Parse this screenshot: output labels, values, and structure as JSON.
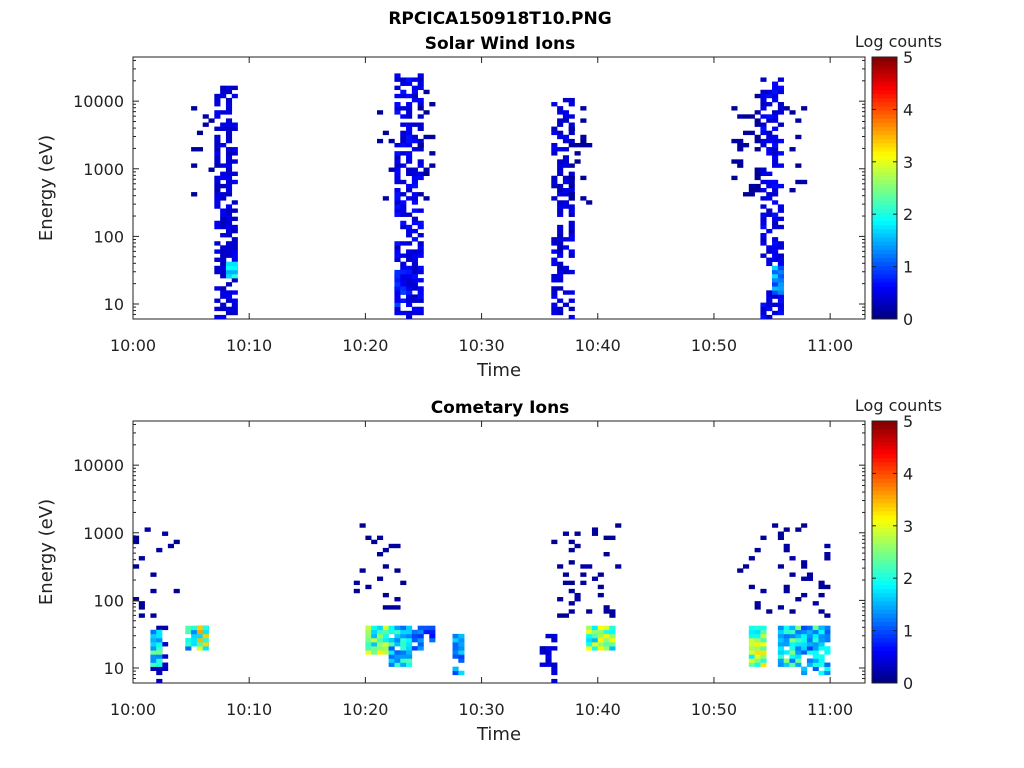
{
  "figure_title": "RPCICA150918T10.PNG",
  "colors": {
    "jet": [
      "#00007f",
      "#0000ff",
      "#007fff",
      "#00ffff",
      "#7fff7f",
      "#ffff00",
      "#ff7f00",
      "#ff0000",
      "#7f0000"
    ]
  },
  "chart_data": [
    {
      "type": "heatmap",
      "title": "Solar Wind Ions",
      "xlabel": "Time",
      "ylabel": "Energy (eV)",
      "y_scale": "log",
      "ylim": [
        6,
        45000
      ],
      "xlim": [
        "10:00",
        "11:03"
      ],
      "x_ticks": [
        "10:00",
        "10:10",
        "10:20",
        "10:30",
        "10:40",
        "10:50",
        "11:00"
      ],
      "y_ticks": [
        "10",
        "100",
        "1000",
        "10000"
      ],
      "colorbar": {
        "label": "Log counts",
        "range": [
          0,
          5
        ],
        "ticks": [
          "0",
          "1",
          "2",
          "3",
          "4",
          "5"
        ]
      },
      "clusters": [
        {
          "t_start": 10.0,
          "t_end": 11.5,
          "e_low": 300,
          "e_high": 10000,
          "density": 0.16,
          "max_level": 0.2
        },
        {
          "t_start": 12.0,
          "t_end": 14.5,
          "e_low": 300,
          "e_high": 15000,
          "density": 0.05,
          "max_level": 0.2
        },
        {
          "t_start": 14.5,
          "t_end": 17.2,
          "e_low": 6,
          "e_high": 15000,
          "density": 0.6,
          "max_level": 0.6
        },
        {
          "t_start": 16.5,
          "t_end": 17.2,
          "e_low": 25,
          "e_high": 40,
          "density": 1.0,
          "max_level": 2.3
        },
        {
          "t_start": 42.0,
          "t_end": 45.0,
          "e_low": 300,
          "e_high": 10000,
          "density": 0.15,
          "max_level": 0.2
        },
        {
          "t_start": 45.0,
          "t_end": 49.5,
          "e_low": 6,
          "e_high": 25000,
          "density": 0.55,
          "max_level": 0.7
        },
        {
          "t_start": 45.5,
          "t_end": 48.0,
          "e_low": 10,
          "e_high": 30,
          "density": 0.8,
          "max_level": 1.0
        },
        {
          "t_start": 49.5,
          "t_end": 52.0,
          "e_low": 300,
          "e_high": 15000,
          "density": 0.12,
          "max_level": 0.2
        },
        {
          "t_start": 72.0,
          "t_end": 75.5,
          "e_low": 6,
          "e_high": 10000,
          "density": 0.55,
          "max_level": 0.6
        },
        {
          "t_start": 75.5,
          "t_end": 79.0,
          "e_low": 300,
          "e_high": 10000,
          "density": 0.18,
          "max_level": 0.2
        },
        {
          "t_start": 103.0,
          "t_end": 108.0,
          "e_low": 400,
          "e_high": 12000,
          "density": 0.15,
          "max_level": 0.2
        },
        {
          "t_start": 108.5,
          "t_end": 112.0,
          "e_low": 6,
          "e_high": 20000,
          "density": 0.55,
          "max_level": 0.7
        },
        {
          "t_start": 110.0,
          "t_end": 111.8,
          "e_low": 15,
          "e_high": 35,
          "density": 1.0,
          "max_level": 1.9
        },
        {
          "t_start": 112.0,
          "t_end": 116.0,
          "e_low": 500,
          "e_high": 10000,
          "density": 0.14,
          "max_level": 0.2
        }
      ]
    },
    {
      "type": "heatmap",
      "title": "Cometary Ions",
      "xlabel": "Time",
      "ylabel": "Energy (eV)",
      "y_scale": "log",
      "ylim": [
        6,
        45000
      ],
      "xlim": [
        "10:00",
        "11:03"
      ],
      "x_ticks": [
        "10:00",
        "10:10",
        "10:20",
        "10:30",
        "10:40",
        "10:50",
        "11:00"
      ],
      "y_ticks": [
        "10",
        "100",
        "1000",
        "10000"
      ],
      "colorbar": {
        "label": "Log counts",
        "range": [
          0,
          5
        ],
        "ticks": [
          "0",
          "1",
          "2",
          "3",
          "4",
          "5"
        ]
      },
      "clusters": [
        {
          "t_start": 0.5,
          "t_end": 8.0,
          "e_low": 60,
          "e_high": 1200,
          "density": 0.12,
          "max_level": 0.2
        },
        {
          "t_start": 3.0,
          "t_end": 5.5,
          "e_low": 6,
          "e_high": 40,
          "density": 0.4,
          "max_level": 0.4
        },
        {
          "t_start": 3.8,
          "t_end": 4.8,
          "e_low": 12,
          "e_high": 35,
          "density": 1.0,
          "max_level": 2.6
        },
        {
          "t_start": 9.5,
          "t_end": 12.5,
          "e_low": 20,
          "e_high": 40,
          "density": 0.8,
          "max_level": 2.3
        },
        {
          "t_start": 11.0,
          "t_end": 13.0,
          "e_low": 20,
          "e_high": 40,
          "density": 1.0,
          "max_level": 3.6
        },
        {
          "t_start": 38.0,
          "t_end": 47.0,
          "e_low": 60,
          "e_high": 1200,
          "density": 0.12,
          "max_level": 0.2
        },
        {
          "t_start": 40.0,
          "t_end": 44.0,
          "e_low": 18,
          "e_high": 40,
          "density": 1.0,
          "max_level": 3.2
        },
        {
          "t_start": 44.0,
          "t_end": 48.0,
          "e_low": 12,
          "e_high": 40,
          "density": 0.9,
          "max_level": 2.3
        },
        {
          "t_start": 48.5,
          "t_end": 51.5,
          "e_low": 20,
          "e_high": 40,
          "density": 0.6,
          "max_level": 1.5
        },
        {
          "t_start": 55.5,
          "t_end": 56.5,
          "e_low": 8,
          "e_high": 30,
          "density": 0.7,
          "max_level": 1.9
        },
        {
          "t_start": 70.0,
          "t_end": 73.0,
          "e_low": 6,
          "e_high": 30,
          "density": 0.45,
          "max_level": 0.5
        },
        {
          "t_start": 72.0,
          "t_end": 84.0,
          "e_low": 60,
          "e_high": 1200,
          "density": 0.12,
          "max_level": 0.2
        },
        {
          "t_start": 78.5,
          "t_end": 83.0,
          "e_low": 20,
          "e_high": 40,
          "density": 1.0,
          "max_level": 3.4
        },
        {
          "t_start": 104.0,
          "t_end": 120.0,
          "e_low": 60,
          "e_high": 1200,
          "density": 0.12,
          "max_level": 0.2
        },
        {
          "t_start": 106.0,
          "t_end": 108.5,
          "e_low": 12,
          "e_high": 40,
          "density": 1.0,
          "max_level": 3.3
        },
        {
          "t_start": 111.0,
          "t_end": 114.5,
          "e_low": 12,
          "e_high": 40,
          "density": 0.9,
          "max_level": 2.6
        },
        {
          "t_start": 115.5,
          "t_end": 120.0,
          "e_low": 8,
          "e_high": 40,
          "density": 0.9,
          "max_level": 2.0
        },
        {
          "t_start": 117.0,
          "t_end": 119.0,
          "e_low": 25,
          "e_high": 40,
          "density": 1.0,
          "max_level": 2.6
        }
      ]
    }
  ]
}
